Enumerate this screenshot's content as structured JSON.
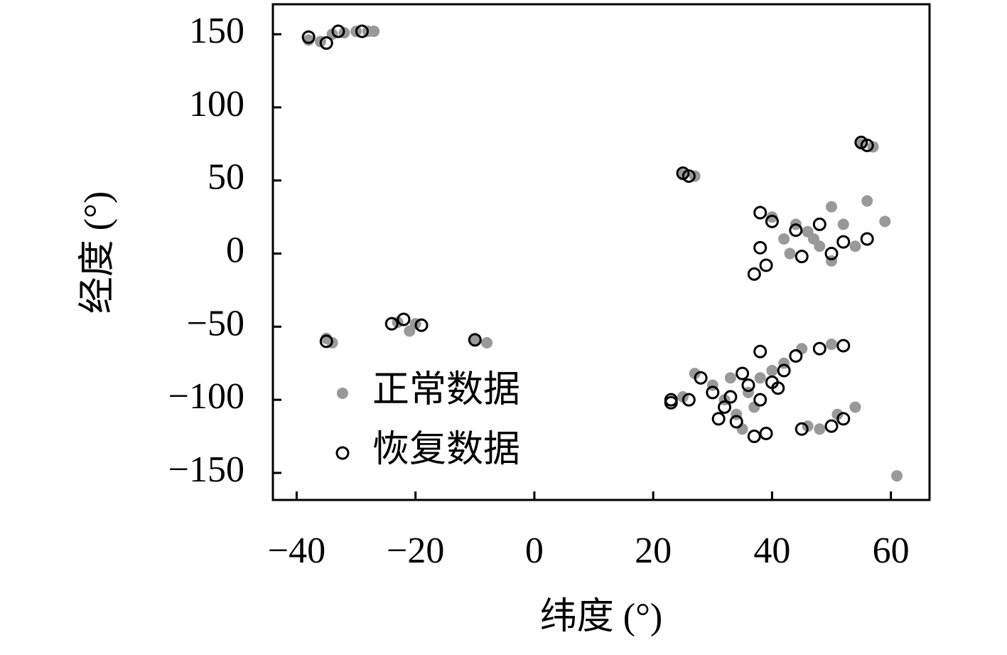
{
  "chart_data": {
    "type": "scatter",
    "xlabel": "纬度 (°)",
    "ylabel": "经度 (°)",
    "xlim": [
      -44,
      66.5
    ],
    "ylim": [
      -168.5,
      170.5
    ],
    "xticks": [
      {
        "value": -40,
        "label": "−40"
      },
      {
        "value": -20,
        "label": "−20"
      },
      0,
      20,
      40,
      60
    ],
    "yticks": [
      {
        "value": -150,
        "label": "−150"
      },
      {
        "value": -100,
        "label": "−100"
      },
      {
        "value": -50,
        "label": "−50"
      },
      0,
      50,
      100,
      150
    ],
    "grid": false,
    "legend": "lower left",
    "series": [
      {
        "name": "正常数据",
        "color": "#999999",
        "style": "filled",
        "x": [
          -38,
          -36,
          -34,
          -32,
          -30,
          -28,
          -27,
          -23,
          -21,
          -20,
          -35,
          -34,
          -10,
          -8,
          25,
          27,
          55,
          57,
          40,
          42,
          44,
          46,
          48,
          50,
          52,
          54,
          56,
          59,
          43,
          47,
          50,
          30,
          32,
          34,
          36,
          38,
          40,
          42,
          35,
          33,
          37,
          45,
          50,
          25,
          27,
          46,
          48,
          51,
          54,
          61
        ],
        "y": [
          146,
          145,
          150,
          151,
          152,
          152,
          152,
          -47,
          -53,
          -48,
          -58,
          -61,
          -59,
          -61,
          54,
          53,
          75,
          73,
          25,
          10,
          20,
          15,
          5,
          32,
          20,
          5,
          36,
          22,
          0,
          10,
          -5,
          -90,
          -100,
          -110,
          -95,
          -85,
          -80,
          -75,
          -120,
          -85,
          -105,
          -65,
          -62,
          -98,
          -82,
          -118,
          -120,
          -110,
          -105,
          -152
        ]
      },
      {
        "name": "恢复数据",
        "color": "#000000",
        "style": "open",
        "x": [
          -38,
          -35,
          -33,
          -29,
          -24,
          -22,
          -19,
          -35,
          -10,
          25,
          26,
          55,
          56,
          38,
          40,
          38,
          37,
          39,
          44,
          48,
          52,
          56,
          45,
          50,
          28,
          30,
          32,
          34,
          36,
          38,
          40,
          42,
          37,
          39,
          38,
          44,
          48,
          52,
          23,
          23,
          26,
          45,
          50,
          52,
          31,
          33,
          35,
          41
        ],
        "y": [
          148,
          144,
          152,
          152,
          -48,
          -45,
          -49,
          -60,
          -59,
          55,
          53,
          76,
          74,
          28,
          22,
          4,
          -14,
          -8,
          16,
          20,
          8,
          10,
          -2,
          0,
          -85,
          -95,
          -105,
          -115,
          -90,
          -100,
          -88,
          -80,
          -125,
          -123,
          -67,
          -70,
          -65,
          -63,
          -102,
          -100,
          -100,
          -120,
          -118,
          -113,
          -113,
          -98,
          -82,
          -92
        ]
      }
    ]
  }
}
